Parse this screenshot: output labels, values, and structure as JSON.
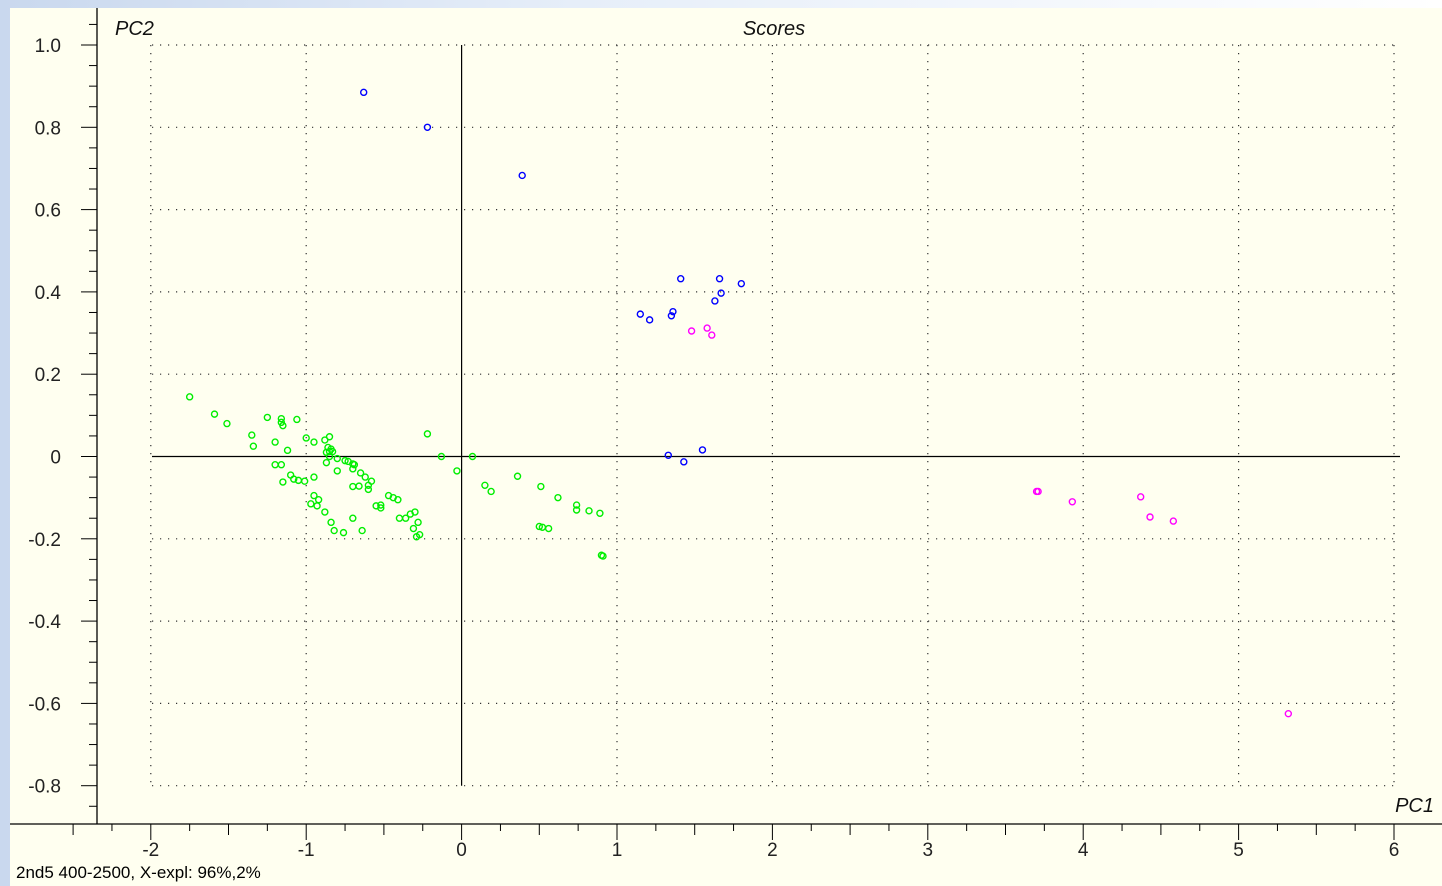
{
  "footer_text": "2nd5 400-2500, X-expl: 96%,2%",
  "chart_data": {
    "type": "scatter",
    "title": "Scores",
    "xlabel": "PC1",
    "ylabel": "PC2",
    "xlim": [
      -2.35,
      6.25
    ],
    "ylim": [
      -0.89,
      1.07
    ],
    "x_ticks": [
      -2,
      -1,
      0,
      1,
      2,
      3,
      4,
      5,
      6
    ],
    "x_tick_labels": [
      "-2",
      "-1",
      "0",
      "1",
      "2",
      "3",
      "4",
      "5",
      "6"
    ],
    "y_ticks": [
      1.0,
      0.8,
      0.6,
      0.4,
      0.2,
      0,
      -0.2,
      -0.4,
      -0.6,
      -0.8
    ],
    "y_tick_labels": [
      "1.0",
      "0.8",
      "0.6",
      "0.4",
      "0.2",
      "0",
      "-0.2",
      "-0.4",
      "-0.6",
      "-0.8"
    ],
    "grid": "dotted",
    "marker": "open-circle",
    "series": [
      {
        "color": "#0000ff",
        "points": [
          [
            -0.63,
            0.885
          ],
          [
            -0.22,
            0.8
          ],
          [
            0.39,
            0.683
          ],
          [
            1.41,
            0.432
          ],
          [
            1.66,
            0.432
          ],
          [
            1.67,
            0.397
          ],
          [
            1.63,
            0.378
          ],
          [
            1.8,
            0.42
          ],
          [
            1.15,
            0.346
          ],
          [
            1.21,
            0.332
          ],
          [
            1.35,
            0.342
          ],
          [
            1.36,
            0.352
          ],
          [
            1.33,
            0.003
          ],
          [
            1.43,
            -0.013
          ],
          [
            1.55,
            0.016
          ]
        ]
      },
      {
        "color": "#ff00ff",
        "points": [
          [
            1.48,
            0.305
          ],
          [
            1.58,
            0.312
          ],
          [
            1.61,
            0.295
          ],
          [
            3.7,
            -0.085
          ],
          [
            3.71,
            -0.085
          ],
          [
            3.93,
            -0.11
          ],
          [
            4.37,
            -0.098
          ],
          [
            4.43,
            -0.147
          ],
          [
            4.58,
            -0.157
          ],
          [
            5.32,
            -0.625
          ]
        ]
      },
      {
        "color": "#00ee00",
        "points": [
          [
            -1.75,
            0.145
          ],
          [
            -1.59,
            0.103
          ],
          [
            -1.51,
            0.08
          ],
          [
            -1.35,
            0.052
          ],
          [
            -1.34,
            0.025
          ],
          [
            -1.25,
            0.095
          ],
          [
            -1.16,
            0.092
          ],
          [
            -1.16,
            0.083
          ],
          [
            -1.15,
            0.075
          ],
          [
            -1.06,
            0.09
          ],
          [
            -1.2,
            0.035
          ],
          [
            -1.12,
            0.015
          ],
          [
            -1.0,
            0.045
          ],
          [
            -0.95,
            0.035
          ],
          [
            -0.88,
            0.04
          ],
          [
            -0.85,
            0.048
          ],
          [
            -0.86,
            0.022
          ],
          [
            -0.84,
            0.018
          ],
          [
            -0.85,
            0.012
          ],
          [
            -0.87,
            0.01
          ],
          [
            -0.83,
            0.012
          ],
          [
            -0.85,
            0.0
          ],
          [
            -0.8,
            -0.005
          ],
          [
            -0.75,
            -0.01
          ],
          [
            -0.73,
            -0.012
          ],
          [
            -0.7,
            -0.018
          ],
          [
            -0.69,
            -0.02
          ],
          [
            -0.7,
            -0.03
          ],
          [
            -0.65,
            -0.04
          ],
          [
            -0.62,
            -0.05
          ],
          [
            -0.58,
            -0.06
          ],
          [
            -0.6,
            -0.07
          ],
          [
            -0.66,
            -0.072
          ],
          [
            -0.7,
            -0.073
          ],
          [
            -0.6,
            -0.08
          ],
          [
            -1.2,
            -0.02
          ],
          [
            -1.16,
            -0.02
          ],
          [
            -1.1,
            -0.045
          ],
          [
            -1.08,
            -0.055
          ],
          [
            -1.05,
            -0.058
          ],
          [
            -1.01,
            -0.06
          ],
          [
            -0.95,
            -0.05
          ],
          [
            -1.15,
            -0.062
          ],
          [
            -0.87,
            -0.015
          ],
          [
            -0.8,
            -0.035
          ],
          [
            -0.95,
            -0.095
          ],
          [
            -0.92,
            -0.105
          ],
          [
            -0.97,
            -0.115
          ],
          [
            -0.93,
            -0.12
          ],
          [
            -0.88,
            -0.135
          ],
          [
            -0.84,
            -0.16
          ],
          [
            -0.82,
            -0.18
          ],
          [
            -0.76,
            -0.185
          ],
          [
            -0.7,
            -0.15
          ],
          [
            -0.64,
            -0.18
          ],
          [
            -0.55,
            -0.12
          ],
          [
            -0.52,
            -0.118
          ],
          [
            -0.47,
            -0.095
          ],
          [
            -0.44,
            -0.1
          ],
          [
            -0.41,
            -0.105
          ],
          [
            -0.4,
            -0.15
          ],
          [
            -0.36,
            -0.15
          ],
          [
            -0.33,
            -0.14
          ],
          [
            -0.3,
            -0.135
          ],
          [
            -0.28,
            -0.16
          ],
          [
            -0.27,
            -0.19
          ],
          [
            -0.29,
            -0.195
          ],
          [
            -0.31,
            -0.175
          ],
          [
            -0.52,
            -0.125
          ],
          [
            -0.22,
            0.055
          ],
          [
            -0.13,
            0.0
          ],
          [
            -0.03,
            -0.035
          ],
          [
            0.07,
            0.0
          ],
          [
            0.15,
            -0.07
          ],
          [
            0.19,
            -0.085
          ],
          [
            0.36,
            -0.048
          ],
          [
            0.51,
            -0.073
          ],
          [
            0.5,
            -0.17
          ],
          [
            0.52,
            -0.172
          ],
          [
            0.56,
            -0.175
          ],
          [
            0.62,
            -0.1
          ],
          [
            0.74,
            -0.118
          ],
          [
            0.74,
            -0.13
          ],
          [
            0.82,
            -0.132
          ],
          [
            0.89,
            -0.138
          ],
          [
            0.9,
            -0.24
          ],
          [
            0.91,
            -0.242
          ]
        ]
      }
    ]
  }
}
